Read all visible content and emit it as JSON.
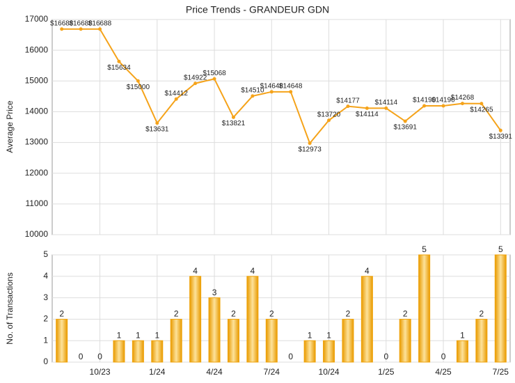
{
  "chart_data": [
    {
      "type": "line",
      "title": "Price Trends - GRANDEUR GDN",
      "y_label": "Average Price",
      "categories": [
        null,
        null,
        "10/23",
        null,
        null,
        "1/24",
        null,
        null,
        "4/24",
        null,
        null,
        "7/24",
        null,
        null,
        "10/24",
        null,
        null,
        "1/25",
        null,
        null,
        "4/25",
        null,
        null,
        "7/25"
      ],
      "series": [
        {
          "name": "Average Price",
          "color": "#f5a31a",
          "values": [
            16688,
            16688,
            16688,
            15634,
            15000,
            13631,
            14412,
            14922,
            15068,
            13821,
            14510,
            14648,
            14648,
            12973,
            13720,
            14177,
            14114,
            14114,
            13691,
            14190,
            14190,
            14268,
            14265,
            13391
          ],
          "value_labels": [
            "$16688",
            "$16688",
            "$16688",
            "$15634",
            "$15000",
            "$13631",
            "$14412",
            "$14922",
            "$15068",
            "$13821",
            "$14510",
            "$14648",
            "$14648",
            "$12973",
            "$13720",
            "$14177",
            "$14114",
            "$14114",
            "$13691",
            "$14190",
            "$14190",
            "$14268",
            "$14265",
            "$13391"
          ]
        }
      ],
      "ylim": [
        10000,
        17000
      ],
      "yticks": [
        10000,
        11000,
        12000,
        13000,
        14000,
        15000,
        16000,
        17000
      ],
      "grid": true
    },
    {
      "type": "bar",
      "y_label": "No. of Transactions",
      "categories": [
        null,
        null,
        "10/23",
        null,
        null,
        "1/24",
        null,
        null,
        "4/24",
        null,
        null,
        "7/24",
        null,
        null,
        "10/24",
        null,
        null,
        "1/25",
        null,
        null,
        "4/25",
        null,
        null,
        "7/25"
      ],
      "series": [
        {
          "name": "No. of Transactions",
          "color": "#f0a30a",
          "values": [
            2,
            0,
            0,
            1,
            1,
            1,
            2,
            4,
            3,
            2,
            4,
            2,
            0,
            1,
            1,
            2,
            4,
            0,
            2,
            5,
            0,
            1,
            2,
            5
          ]
        }
      ],
      "ylim": [
        0,
        5
      ],
      "yticks": [
        0,
        1,
        2,
        3,
        4,
        5
      ],
      "grid": true
    }
  ]
}
